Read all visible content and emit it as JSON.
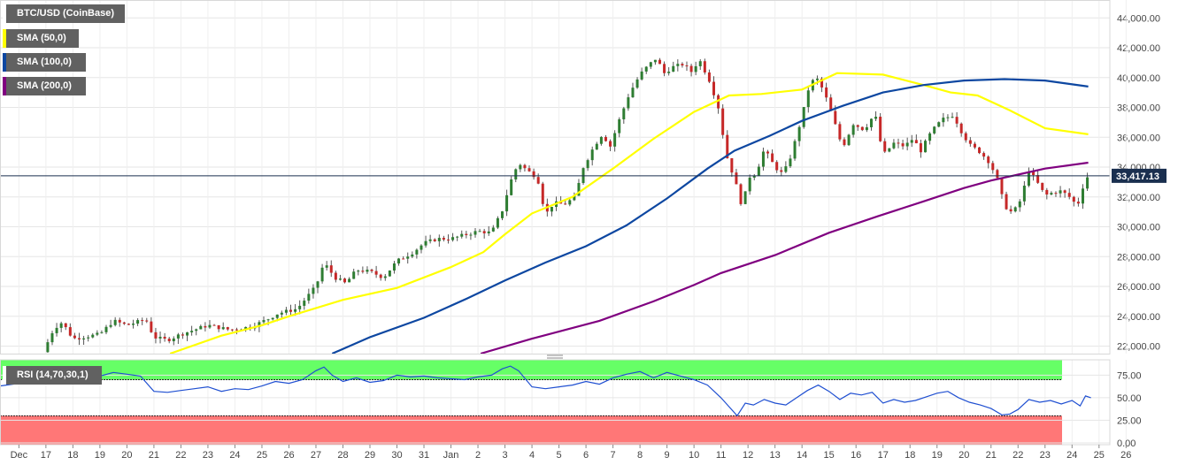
{
  "chart_data": [
    {
      "type": "candlestick",
      "title": "BTC/USD (CoinBase)",
      "ylim": [
        21500,
        45200
      ],
      "y_ticks": [
        "22,000.00",
        "24,000.00",
        "26,000.00",
        "28,000.00",
        "30,000.00",
        "32,000.00",
        "34,000.00",
        "36,000.00",
        "38,000.00",
        "40,000.00",
        "42,000.00",
        "44,000.00"
      ],
      "y_tick_values": [
        22000,
        24000,
        26000,
        28000,
        30000,
        32000,
        34000,
        36000,
        38000,
        40000,
        42000,
        44000
      ],
      "x_ticks": [
        "Dec",
        "17",
        "18",
        "19",
        "20",
        "21",
        "22",
        "23",
        "24",
        "25",
        "26",
        "27",
        "28",
        "29",
        "30",
        "31",
        "Jan",
        "2",
        "3",
        "4",
        "5",
        "6",
        "7",
        "8",
        "9",
        "10",
        "11",
        "12",
        "13",
        "14",
        "15",
        "16",
        "17",
        "18",
        "19",
        "20",
        "21",
        "22",
        "23",
        "24",
        "25",
        "26"
      ],
      "x_tick_days": [
        -1,
        0,
        1,
        2,
        3,
        4,
        5,
        6,
        7,
        8,
        9,
        10,
        11,
        12,
        13,
        14,
        15,
        16,
        17,
        18,
        19,
        20,
        21,
        22,
        23,
        24,
        25,
        26,
        27,
        28,
        29,
        30,
        31,
        32,
        33,
        34,
        35,
        36,
        37,
        38,
        39,
        40
      ],
      "x_day_range": [
        -1.7,
        39.4
      ],
      "current_price": 33417.13,
      "current_price_label": "33,417.13",
      "price_path": [
        [
          -0.1,
          21600
        ],
        [
          0.3,
          23200
        ],
        [
          0.6,
          23600
        ],
        [
          1.0,
          22500
        ],
        [
          2.0,
          22800
        ],
        [
          2.5,
          23700
        ],
        [
          3.0,
          23400
        ],
        [
          3.7,
          23800
        ],
        [
          4.0,
          22600
        ],
        [
          4.5,
          22400
        ],
        [
          5.0,
          22800
        ],
        [
          6.0,
          23400
        ],
        [
          6.8,
          23100
        ],
        [
          7.6,
          23300
        ],
        [
          8.2,
          23800
        ],
        [
          8.6,
          24200
        ],
        [
          9.3,
          24500
        ],
        [
          10.0,
          26000
        ],
        [
          10.3,
          27600
        ],
        [
          10.7,
          26600
        ],
        [
          11.1,
          26200
        ],
        [
          11.5,
          27100
        ],
        [
          12.0,
          27000
        ],
        [
          12.5,
          26600
        ],
        [
          13.0,
          27700
        ],
        [
          13.6,
          28300
        ],
        [
          14.0,
          28900
        ],
        [
          14.5,
          29200
        ],
        [
          15.0,
          29200
        ],
        [
          15.6,
          29500
        ],
        [
          16.0,
          29700
        ],
        [
          16.5,
          29600
        ],
        [
          16.9,
          31100
        ],
        [
          17.2,
          33000
        ],
        [
          17.5,
          34300
        ],
        [
          17.8,
          33800
        ],
        [
          18.2,
          33300
        ],
        [
          18.5,
          30800
        ],
        [
          18.8,
          31600
        ],
        [
          19.2,
          31500
        ],
        [
          19.6,
          32000
        ],
        [
          19.9,
          34000
        ],
        [
          20.3,
          35400
        ],
        [
          20.6,
          36200
        ],
        [
          20.9,
          35400
        ],
        [
          21.2,
          37000
        ],
        [
          21.6,
          38900
        ],
        [
          22.0,
          40200
        ],
        [
          22.3,
          40800
        ],
        [
          22.6,
          41300
        ],
        [
          22.9,
          40300
        ],
        [
          23.2,
          40700
        ],
        [
          23.6,
          40900
        ],
        [
          23.9,
          40400
        ],
        [
          24.2,
          41200
        ],
        [
          24.6,
          39700
        ],
        [
          24.9,
          38000
        ],
        [
          25.2,
          34800
        ],
        [
          25.5,
          33200
        ],
        [
          25.8,
          31200
        ],
        [
          26.0,
          33300
        ],
        [
          26.3,
          33600
        ],
        [
          26.6,
          35200
        ],
        [
          27.0,
          34000
        ],
        [
          27.3,
          33500
        ],
        [
          27.6,
          34800
        ],
        [
          28.0,
          37400
        ],
        [
          28.3,
          39700
        ],
        [
          28.6,
          39900
        ],
        [
          28.9,
          38600
        ],
        [
          29.2,
          37000
        ],
        [
          29.5,
          35300
        ],
        [
          29.9,
          36900
        ],
        [
          30.3,
          36500
        ],
        [
          30.7,
          37600
        ],
        [
          31.0,
          34800
        ],
        [
          31.4,
          35600
        ],
        [
          31.8,
          35400
        ],
        [
          32.1,
          35900
        ],
        [
          32.4,
          35100
        ],
        [
          32.8,
          36400
        ],
        [
          33.2,
          37200
        ],
        [
          33.6,
          37500
        ],
        [
          33.9,
          36400
        ],
        [
          34.2,
          35500
        ],
        [
          34.6,
          35000
        ],
        [
          34.9,
          34400
        ],
        [
          35.2,
          33400
        ],
        [
          35.5,
          31400
        ],
        [
          35.8,
          30900
        ],
        [
          36.1,
          31800
        ],
        [
          36.4,
          33800
        ],
        [
          36.7,
          33000
        ],
        [
          37.0,
          32100
        ],
        [
          37.3,
          32300
        ],
        [
          37.6,
          32400
        ],
        [
          37.9,
          32000
        ],
        [
          38.2,
          31400
        ],
        [
          38.5,
          33300
        ],
        [
          38.7,
          33417
        ]
      ],
      "series": [
        {
          "name": "SMA (50,0)",
          "color": "#ffff00",
          "path": [
            [
              4.6,
              21500
            ],
            [
              6.5,
              22700
            ],
            [
              8.0,
              23400
            ],
            [
              9.0,
              24000
            ],
            [
              11.0,
              25100
            ],
            [
              13.0,
              25900
            ],
            [
              15.0,
              27300
            ],
            [
              16.2,
              28300
            ],
            [
              17.0,
              29500
            ],
            [
              18.0,
              30900
            ],
            [
              19.5,
              32000
            ],
            [
              21.0,
              33900
            ],
            [
              22.5,
              35900
            ],
            [
              24.0,
              37700
            ],
            [
              25.3,
              38800
            ],
            [
              26.5,
              38900
            ],
            [
              28.0,
              39200
            ],
            [
              29.3,
              40300
            ],
            [
              31.0,
              40200
            ],
            [
              32.5,
              39500
            ],
            [
              33.5,
              39000
            ],
            [
              34.5,
              38800
            ],
            [
              35.7,
              37800
            ],
            [
              37.0,
              36600
            ],
            [
              38.6,
              36200
            ]
          ]
        },
        {
          "name": "SMA (100,0)",
          "color": "#0d47a1",
          "path": [
            [
              10.6,
              21500
            ],
            [
              12.0,
              22600
            ],
            [
              14.0,
              23900
            ],
            [
              15.6,
              25200
            ],
            [
              17.0,
              26400
            ],
            [
              18.5,
              27600
            ],
            [
              20.0,
              28700
            ],
            [
              21.5,
              30100
            ],
            [
              23.0,
              31900
            ],
            [
              24.5,
              33900
            ],
            [
              25.5,
              35100
            ],
            [
              26.8,
              36100
            ],
            [
              28.0,
              37100
            ],
            [
              29.5,
              38100
            ],
            [
              31.0,
              39000
            ],
            [
              32.5,
              39500
            ],
            [
              34.0,
              39800
            ],
            [
              35.5,
              39900
            ],
            [
              37.0,
              39800
            ],
            [
              38.6,
              39400
            ]
          ]
        },
        {
          "name": "SMA (200,0)",
          "color": "#800080",
          "path": [
            [
              16.1,
              21500
            ],
            [
              18.0,
              22500
            ],
            [
              20.5,
              23700
            ],
            [
              22.5,
              25000
            ],
            [
              24.0,
              26100
            ],
            [
              25.0,
              26900
            ],
            [
              27.0,
              28100
            ],
            [
              29.0,
              29600
            ],
            [
              30.8,
              30700
            ],
            [
              32.5,
              31700
            ],
            [
              34.0,
              32600
            ],
            [
              35.0,
              33100
            ],
            [
              36.0,
              33500
            ],
            [
              37.0,
              33900
            ],
            [
              38.6,
              34300
            ]
          ]
        }
      ]
    },
    {
      "type": "line",
      "title": "RSI (14,70,30,1)",
      "ylim": [
        -2,
        92
      ],
      "y_ticks": [
        "0.00",
        "25.00",
        "50.00",
        "75.00"
      ],
      "y_tick_values": [
        0,
        25,
        50,
        75
      ],
      "overbought": 70,
      "oversold": 30,
      "zone_colors": {
        "overbought": "#66ff66",
        "oversold": "#ff7777",
        "line": "#1f4fd1"
      },
      "values_path": [
        [
          -1.7,
          63
        ],
        [
          -1.0,
          66
        ],
        [
          -0.4,
          70
        ],
        [
          0.2,
          76
        ],
        [
          0.6,
          74
        ],
        [
          1.0,
          68
        ],
        [
          1.6,
          70
        ],
        [
          2.0,
          74
        ],
        [
          2.5,
          78
        ],
        [
          3.0,
          76
        ],
        [
          3.5,
          74
        ],
        [
          4.0,
          57
        ],
        [
          4.5,
          56
        ],
        [
          5.0,
          58
        ],
        [
          5.5,
          60
        ],
        [
          6.0,
          62
        ],
        [
          6.5,
          57
        ],
        [
          7.0,
          60
        ],
        [
          7.5,
          59
        ],
        [
          8.0,
          63
        ],
        [
          8.5,
          68
        ],
        [
          9.0,
          66
        ],
        [
          9.5,
          70
        ],
        [
          10.0,
          80
        ],
        [
          10.3,
          84
        ],
        [
          10.6,
          75
        ],
        [
          11.0,
          68
        ],
        [
          11.5,
          72
        ],
        [
          12.0,
          67
        ],
        [
          12.5,
          69
        ],
        [
          13.0,
          75
        ],
        [
          13.5,
          73
        ],
        [
          14.0,
          74
        ],
        [
          14.5,
          72
        ],
        [
          15.0,
          71
        ],
        [
          15.5,
          70
        ],
        [
          16.0,
          73
        ],
        [
          16.5,
          75
        ],
        [
          16.9,
          82
        ],
        [
          17.2,
          85
        ],
        [
          17.5,
          80
        ],
        [
          18.0,
          62
        ],
        [
          18.5,
          60
        ],
        [
          19.0,
          62
        ],
        [
          19.5,
          64
        ],
        [
          20.0,
          68
        ],
        [
          20.5,
          65
        ],
        [
          21.0,
          72
        ],
        [
          21.5,
          76
        ],
        [
          22.0,
          79
        ],
        [
          22.5,
          72
        ],
        [
          23.0,
          78
        ],
        [
          23.5,
          74
        ],
        [
          24.0,
          70
        ],
        [
          24.5,
          64
        ],
        [
          25.0,
          50
        ],
        [
          25.3,
          40
        ],
        [
          25.6,
          30
        ],
        [
          25.9,
          44
        ],
        [
          26.2,
          42
        ],
        [
          26.6,
          48
        ],
        [
          27.0,
          44
        ],
        [
          27.4,
          42
        ],
        [
          27.8,
          50
        ],
        [
          28.2,
          58
        ],
        [
          28.6,
          64
        ],
        [
          29.0,
          57
        ],
        [
          29.4,
          48
        ],
        [
          29.8,
          55
        ],
        [
          30.2,
          53
        ],
        [
          30.6,
          56
        ],
        [
          31.0,
          44
        ],
        [
          31.4,
          48
        ],
        [
          31.8,
          45
        ],
        [
          32.2,
          47
        ],
        [
          32.6,
          51
        ],
        [
          33.0,
          55
        ],
        [
          33.4,
          57
        ],
        [
          33.8,
          50
        ],
        [
          34.2,
          45
        ],
        [
          34.6,
          42
        ],
        [
          35.0,
          38
        ],
        [
          35.4,
          31
        ],
        [
          35.7,
          32
        ],
        [
          36.0,
          37
        ],
        [
          36.4,
          48
        ],
        [
          36.8,
          45
        ],
        [
          37.2,
          47
        ],
        [
          37.6,
          43
        ],
        [
          38.0,
          47
        ],
        [
          38.3,
          41
        ],
        [
          38.5,
          52
        ],
        [
          38.7,
          50
        ]
      ]
    }
  ]
}
